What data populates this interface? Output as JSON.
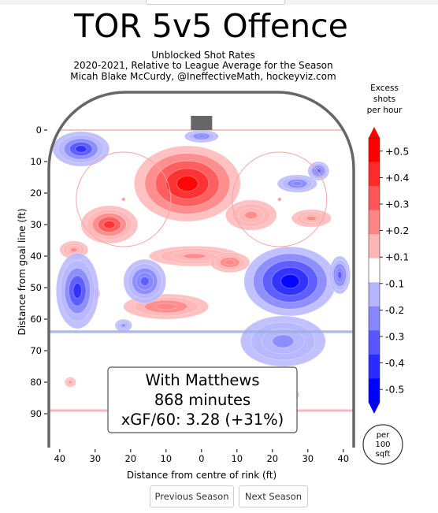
{
  "header": {
    "title": "TOR 5v5 Offence",
    "subtitle": "Unblocked Shot Rates",
    "season_line": "2020-2021, Relative to League Average for the Season",
    "credit": "Micah Blake McCurdy, @IneffectiveMath, hockeyviz.com"
  },
  "chart_data": {
    "type": "heatmap",
    "xlabel": "Distance from centre of rink (ft)",
    "ylabel": "Distance from goal line (ft)",
    "xlim": [
      -43,
      43
    ],
    "ylim": [
      0,
      90
    ],
    "x_ticks": [
      "40",
      "30",
      "20",
      "10",
      "0",
      "10",
      "20",
      "30",
      "40"
    ],
    "x_tick_values": [
      -40,
      -30,
      -20,
      -10,
      0,
      10,
      20,
      30,
      40
    ],
    "y_ticks": [
      "0",
      "10",
      "20",
      "30",
      "40",
      "50",
      "60",
      "70",
      "80",
      "90"
    ],
    "y_tick_values": [
      0,
      10,
      20,
      30,
      40,
      50,
      60,
      70,
      80,
      90
    ],
    "colorbar": {
      "title": [
        "Excess",
        "shots",
        "per hour"
      ],
      "labels": [
        "+0.5",
        "+0.4",
        "+0.3",
        "+0.2",
        "+0.1",
        "-0.1",
        "-0.2",
        "-0.3",
        "-0.4",
        "-0.5"
      ],
      "colors": [
        "#ff0000",
        "#ff2b2b",
        "#ff5757",
        "#ff8686",
        "#ffb6b6",
        "#ffffff",
        "#b6b6ff",
        "#8686ff",
        "#5757ff",
        "#2b2bff",
        "#0000ff"
      ]
    },
    "unit_badge": [
      "per",
      "100",
      "sqft"
    ],
    "annotation": {
      "line1": "With Matthews",
      "line2": "868 minutes",
      "line3": "xGF/60: 3.28 (+31%)"
    },
    "hotspots": [
      {
        "x": -4,
        "y": 17,
        "rx": 15,
        "ry": 12,
        "value": 0.5
      },
      {
        "x": -26,
        "y": 30,
        "rx": 8,
        "ry": 6,
        "value": 0.35
      },
      {
        "x": -36,
        "y": 38,
        "rx": 5,
        "ry": 3.5,
        "value": 0.15
      },
      {
        "x": 14,
        "y": 27,
        "rx": 9,
        "ry": 6,
        "value": 0.15
      },
      {
        "x": 31,
        "y": 28,
        "rx": 7,
        "ry": 3.5,
        "value": 0.15
      },
      {
        "x": -2,
        "y": 40,
        "rx": 16,
        "ry": 4,
        "value": 0.15
      },
      {
        "x": 8,
        "y": 42,
        "rx": 7,
        "ry": 4,
        "value": 0.2
      },
      {
        "x": -10,
        "y": 56,
        "rx": 15,
        "ry": 5,
        "value": 0.2
      },
      {
        "x": -31,
        "y": 52,
        "rx": 4,
        "ry": 3.5,
        "value": 0.1
      },
      {
        "x": -37,
        "y": 80,
        "rx": 2,
        "ry": 2,
        "value": 0.15
      },
      {
        "x": 26,
        "y": 84,
        "rx": 2,
        "ry": 2,
        "value": 0.15
      },
      {
        "x": -34,
        "y": 6,
        "rx": 8,
        "ry": 5.5,
        "value": -0.35
      },
      {
        "x": 0,
        "y": 2,
        "rx": 6,
        "ry": 2.5,
        "value": -0.2
      },
      {
        "x": 27,
        "y": 17,
        "rx": 7,
        "ry": 3.5,
        "value": -0.2
      },
      {
        "x": 33,
        "y": 13,
        "rx": 3,
        "ry": 3,
        "value": -0.3
      },
      {
        "x": -35,
        "y": 51,
        "rx": 6,
        "ry": 12,
        "value": -0.35
      },
      {
        "x": -16,
        "y": 48,
        "rx": 6,
        "ry": 7,
        "value": -0.3
      },
      {
        "x": 25,
        "y": 48,
        "rx": 13,
        "ry": 11,
        "value": -0.5
      },
      {
        "x": 23,
        "y": 67,
        "rx": 15,
        "ry": 10,
        "value": -0.15
      },
      {
        "x": -22,
        "y": 62,
        "rx": 3,
        "ry": 2.5,
        "value": -0.15
      },
      {
        "x": 39,
        "y": 46,
        "rx": 3,
        "ry": 6,
        "value": -0.25
      }
    ]
  },
  "nav": {
    "previous": "Previous Season",
    "next": "Next Season"
  }
}
